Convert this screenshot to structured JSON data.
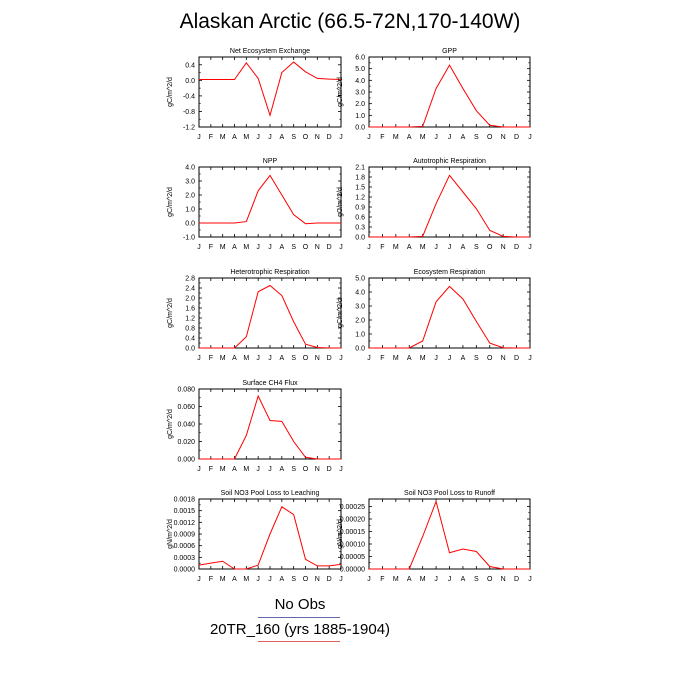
{
  "title": "Alaskan Arctic (66.5-72N,170-140W)",
  "legend": {
    "obs_label": "No Obs",
    "model_label": "20TR_160 (yrs 1885-1904)",
    "model_color": "#ff0000",
    "obs_line_color": "#6666aa"
  },
  "chart_data": [
    {
      "type": "line",
      "title": "Net Ecosystem Exchange",
      "ylabel": "gC/m^2/d",
      "categories": [
        "J",
        "F",
        "M",
        "A",
        "M",
        "J",
        "J",
        "A",
        "S",
        "O",
        "N",
        "D",
        "J"
      ],
      "ylim": [
        -1.2,
        0.6
      ],
      "yticks": [
        "0.4",
        "0.0",
        "-0.4",
        "-0.8",
        "-1.2"
      ],
      "series": [
        {
          "values": [
            0.02,
            0.02,
            0.02,
            0.02,
            0.45,
            0.05,
            -0.9,
            0.2,
            0.47,
            0.22,
            0.05,
            0.03,
            0.02
          ]
        }
      ]
    },
    {
      "type": "line",
      "title": "GPP",
      "ylabel": "gC/m^2/d",
      "categories": [
        "J",
        "F",
        "M",
        "A",
        "M",
        "J",
        "J",
        "A",
        "S",
        "O",
        "N",
        "D",
        "J"
      ],
      "ylim": [
        0,
        6
      ],
      "yticks": [
        "6.0",
        "5.0",
        "4.0",
        "3.0",
        "2.0",
        "1.0",
        "0.0"
      ],
      "series": [
        {
          "values": [
            0,
            0,
            0,
            0,
            0.05,
            3.3,
            5.3,
            3.3,
            1.4,
            0.15,
            0,
            0,
            0
          ]
        }
      ]
    },
    {
      "type": "line",
      "title": "NPP",
      "ylabel": "gC/m^2/d",
      "categories": [
        "J",
        "F",
        "M",
        "A",
        "M",
        "J",
        "J",
        "A",
        "S",
        "O",
        "N",
        "D",
        "J"
      ],
      "ylim": [
        -1,
        4
      ],
      "yticks": [
        "4.0",
        "3.0",
        "2.0",
        "1.0",
        "0.0",
        "-1.0"
      ],
      "series": [
        {
          "values": [
            0,
            0,
            0,
            0,
            0.1,
            2.3,
            3.4,
            2.0,
            0.6,
            -0.05,
            0,
            0,
            0
          ]
        }
      ]
    },
    {
      "type": "line",
      "title": "Autotrophic Respiration",
      "ylabel": "gC/m^2/d",
      "categories": [
        "J",
        "F",
        "M",
        "A",
        "M",
        "J",
        "J",
        "A",
        "S",
        "O",
        "N",
        "D",
        "J"
      ],
      "ylim": [
        0,
        2.1
      ],
      "yticks": [
        "2.1",
        "1.8",
        "1.5",
        "1.2",
        "0.9",
        "0.6",
        "0.3",
        "0.0"
      ],
      "series": [
        {
          "values": [
            0,
            0,
            0,
            0,
            0.02,
            1.0,
            1.85,
            1.35,
            0.85,
            0.2,
            0.02,
            0,
            0
          ]
        }
      ]
    },
    {
      "type": "line",
      "title": "Heterotrophic Respiration",
      "ylabel": "gC/m^2/d",
      "categories": [
        "J",
        "F",
        "M",
        "A",
        "M",
        "J",
        "J",
        "A",
        "S",
        "O",
        "N",
        "D",
        "J"
      ],
      "ylim": [
        0,
        2.8
      ],
      "yticks": [
        "2.8",
        "2.4",
        "2.0",
        "1.6",
        "1.2",
        "0.8",
        "0.4",
        "0.0"
      ],
      "series": [
        {
          "values": [
            0,
            0,
            0,
            0,
            0.45,
            2.25,
            2.5,
            2.1,
            1.05,
            0.15,
            0.02,
            0,
            0
          ]
        }
      ]
    },
    {
      "type": "line",
      "title": "Ecosystem Respiration",
      "ylabel": "gC/m^2/d",
      "categories": [
        "J",
        "F",
        "M",
        "A",
        "M",
        "J",
        "J",
        "A",
        "S",
        "O",
        "N",
        "D",
        "J"
      ],
      "ylim": [
        0,
        5
      ],
      "yticks": [
        "5.0",
        "4.0",
        "3.0",
        "2.0",
        "1.0",
        "0.0"
      ],
      "series": [
        {
          "values": [
            0,
            0,
            0,
            0,
            0.5,
            3.3,
            4.4,
            3.5,
            1.9,
            0.35,
            0.02,
            0,
            0
          ]
        }
      ]
    },
    {
      "type": "line",
      "title": "Surface CH4 Flux",
      "ylabel": "gC/m^2/d",
      "categories": [
        "J",
        "F",
        "M",
        "A",
        "M",
        "J",
        "J",
        "A",
        "S",
        "O",
        "N",
        "D",
        "J"
      ],
      "ylim": [
        0,
        0.08
      ],
      "yticks": [
        "0.080",
        "0.060",
        "0.040",
        "0.020",
        "0.000"
      ],
      "series": [
        {
          "values": [
            0,
            0,
            0,
            0,
            0.027,
            0.072,
            0.044,
            0.043,
            0.02,
            0.002,
            0,
            0,
            0
          ]
        }
      ]
    },
    {
      "type": "line",
      "title": "Soil NO3 Pool Loss to Leaching",
      "ylabel": "gN/m^2/d",
      "categories": [
        "J",
        "F",
        "M",
        "A",
        "M",
        "J",
        "J",
        "A",
        "S",
        "O",
        "N",
        "D",
        "J"
      ],
      "ylim": [
        0,
        0.0018
      ],
      "yticks": [
        "0.0018",
        "0.0015",
        "0.0012",
        "0.0009",
        "0.0006",
        "0.0003",
        "0.0000"
      ],
      "series": [
        {
          "values": [
            0.0001,
            0.00015,
            0.0002,
            0.0,
            0.0,
            0.0001,
            0.0009,
            0.0016,
            0.0014,
            0.00025,
            8e-05,
            8e-05,
            0.00012
          ]
        }
      ]
    },
    {
      "type": "line",
      "title": "Soil NO3 Pool Loss to Runoff",
      "ylabel": "gN/m^2/d",
      "categories": [
        "J",
        "F",
        "M",
        "A",
        "M",
        "J",
        "J",
        "A",
        "S",
        "O",
        "N",
        "D",
        "J"
      ],
      "ylim": [
        0,
        0.00028
      ],
      "yticks": [
        "0.00025",
        "0.00020",
        "0.00015",
        "0.00010",
        "0.00005",
        "0.00000"
      ],
      "series": [
        {
          "values": [
            0,
            0,
            0,
            0,
            0.00013,
            0.00027,
            6.5e-05,
            8e-05,
            7e-05,
            1e-05,
            0,
            0,
            0
          ]
        }
      ]
    }
  ]
}
